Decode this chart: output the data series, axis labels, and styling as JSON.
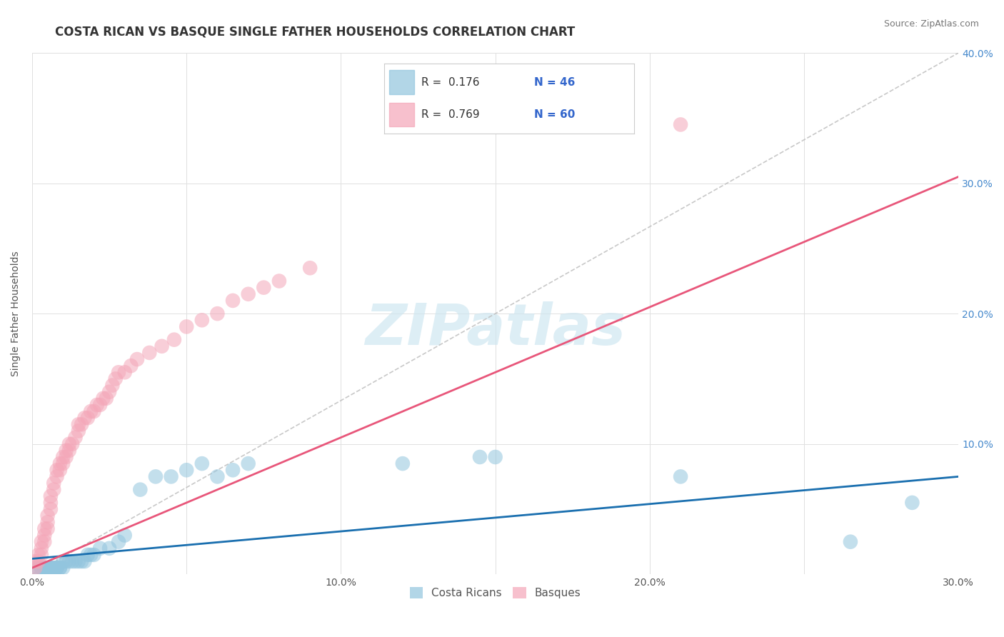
{
  "title": "COSTA RICAN VS BASQUE SINGLE FATHER HOUSEHOLDS CORRELATION CHART",
  "source": "Source: ZipAtlas.com",
  "ylabel": "Single Father Households",
  "xlim": [
    0.0,
    0.3
  ],
  "ylim": [
    0.0,
    0.4
  ],
  "xticks": [
    0.0,
    0.05,
    0.1,
    0.15,
    0.2,
    0.25,
    0.3
  ],
  "yticks": [
    0.0,
    0.1,
    0.2,
    0.3,
    0.4
  ],
  "xtick_labels": [
    "0.0%",
    "",
    "10.0%",
    "",
    "20.0%",
    "",
    "30.0%"
  ],
  "ytick_labels": [
    "",
    "10.0%",
    "20.0%",
    "30.0%",
    "40.0%"
  ],
  "watermark": "ZIPatlas",
  "blue_color": "#92c5de",
  "pink_color": "#f4a6b8",
  "blue_line_color": "#1a6faf",
  "pink_line_color": "#e8567a",
  "ref_line_color": "#bbbbbb",
  "legend_R1": "R =  0.176",
  "legend_N1": "N = 46",
  "legend_R2": "R =  0.769",
  "legend_N2": "N = 60",
  "legend_label1": "Costa Ricans",
  "legend_label2": "Basques",
  "title_fontsize": 12,
  "axis_label_fontsize": 10,
  "tick_fontsize": 10,
  "background_color": "#ffffff",
  "grid_color": "#e0e0e0",
  "costa_rican_x": [
    0.001,
    0.002,
    0.003,
    0.003,
    0.004,
    0.004,
    0.005,
    0.005,
    0.006,
    0.006,
    0.007,
    0.007,
    0.008,
    0.008,
    0.009,
    0.009,
    0.01,
    0.01,
    0.011,
    0.012,
    0.013,
    0.014,
    0.015,
    0.016,
    0.017,
    0.018,
    0.019,
    0.02,
    0.022,
    0.025,
    0.028,
    0.03,
    0.035,
    0.04,
    0.045,
    0.05,
    0.055,
    0.06,
    0.065,
    0.07,
    0.12,
    0.145,
    0.15,
    0.21,
    0.265,
    0.285
  ],
  "costa_rican_y": [
    0.005,
    0.005,
    0.005,
    0.005,
    0.005,
    0.005,
    0.005,
    0.005,
    0.005,
    0.005,
    0.005,
    0.005,
    0.005,
    0.005,
    0.005,
    0.005,
    0.005,
    0.01,
    0.01,
    0.01,
    0.01,
    0.01,
    0.01,
    0.01,
    0.01,
    0.015,
    0.015,
    0.015,
    0.02,
    0.02,
    0.025,
    0.03,
    0.065,
    0.075,
    0.075,
    0.08,
    0.085,
    0.075,
    0.08,
    0.085,
    0.085,
    0.09,
    0.09,
    0.075,
    0.025,
    0.055
  ],
  "basque_x": [
    0.001,
    0.001,
    0.002,
    0.002,
    0.003,
    0.003,
    0.003,
    0.004,
    0.004,
    0.004,
    0.005,
    0.005,
    0.005,
    0.006,
    0.006,
    0.006,
    0.007,
    0.007,
    0.008,
    0.008,
    0.009,
    0.009,
    0.01,
    0.01,
    0.011,
    0.011,
    0.012,
    0.012,
    0.013,
    0.014,
    0.015,
    0.015,
    0.016,
    0.017,
    0.018,
    0.019,
    0.02,
    0.021,
    0.022,
    0.023,
    0.024,
    0.025,
    0.026,
    0.027,
    0.028,
    0.03,
    0.032,
    0.034,
    0.038,
    0.042,
    0.046,
    0.05,
    0.055,
    0.06,
    0.065,
    0.07,
    0.075,
    0.08,
    0.09,
    0.21
  ],
  "basque_y": [
    0.005,
    0.01,
    0.01,
    0.015,
    0.015,
    0.02,
    0.025,
    0.025,
    0.03,
    0.035,
    0.035,
    0.04,
    0.045,
    0.05,
    0.055,
    0.06,
    0.065,
    0.07,
    0.075,
    0.08,
    0.08,
    0.085,
    0.085,
    0.09,
    0.09,
    0.095,
    0.095,
    0.1,
    0.1,
    0.105,
    0.11,
    0.115,
    0.115,
    0.12,
    0.12,
    0.125,
    0.125,
    0.13,
    0.13,
    0.135,
    0.135,
    0.14,
    0.145,
    0.15,
    0.155,
    0.155,
    0.16,
    0.165,
    0.17,
    0.175,
    0.18,
    0.19,
    0.195,
    0.2,
    0.21,
    0.215,
    0.22,
    0.225,
    0.235,
    0.345
  ]
}
